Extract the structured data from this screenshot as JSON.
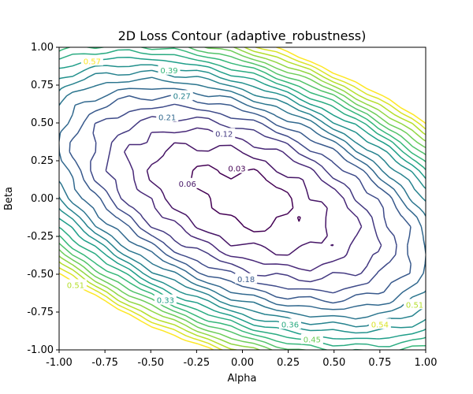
{
  "chart_data": {
    "type": "contour",
    "title": "2D Loss Contour (adaptive_robustness)",
    "xlabel": "Alpha",
    "ylabel": "Beta",
    "xlim": [
      -1.0,
      1.0
    ],
    "ylim": [
      -1.0,
      1.0
    ],
    "xticks": [
      "-1.00",
      "-0.75",
      "-0.50",
      "-0.25",
      "0.00",
      "0.25",
      "0.50",
      "0.75",
      "1.00"
    ],
    "yticks": [
      "-1.00",
      "-0.75",
      "-0.50",
      "-0.25",
      "0.00",
      "0.25",
      "0.50",
      "0.75",
      "1.00"
    ],
    "colormap": "viridis",
    "grid": false,
    "levels": [
      0.03,
      0.06,
      0.09,
      0.12,
      0.15,
      0.18,
      0.21,
      0.24,
      0.27,
      0.3,
      0.33,
      0.36,
      0.39,
      0.42,
      0.45,
      0.48,
      0.51,
      0.54,
      0.57
    ],
    "level_min": 0.03,
    "level_max": 0.57,
    "labels": [
      {
        "text": "0.03",
        "x": -0.03,
        "y": 0.2
      },
      {
        "text": "0.06",
        "x": -0.3,
        "y": 0.1
      },
      {
        "text": "0.12",
        "x": -0.1,
        "y": 0.43
      },
      {
        "text": "0.18",
        "x": 0.02,
        "y": -0.53
      },
      {
        "text": "0.21",
        "x": -0.41,
        "y": 0.54
      },
      {
        "text": "0.27",
        "x": -0.33,
        "y": 0.68
      },
      {
        "text": "0.39",
        "x": -0.4,
        "y": 0.85
      },
      {
        "text": "0.33",
        "x": -0.42,
        "y": -0.67
      },
      {
        "text": "0.36",
        "x": 0.26,
        "y": -0.83
      },
      {
        "text": "0.45",
        "x": 0.38,
        "y": -0.93
      },
      {
        "text": "0.51",
        "x": -0.91,
        "y": -0.57
      },
      {
        "text": "0.54",
        "x": 0.75,
        "y": -0.83
      },
      {
        "text": "0.51",
        "x": 0.94,
        "y": -0.7
      },
      {
        "text": "0.57",
        "x": -0.82,
        "y": 0.91
      }
    ]
  }
}
